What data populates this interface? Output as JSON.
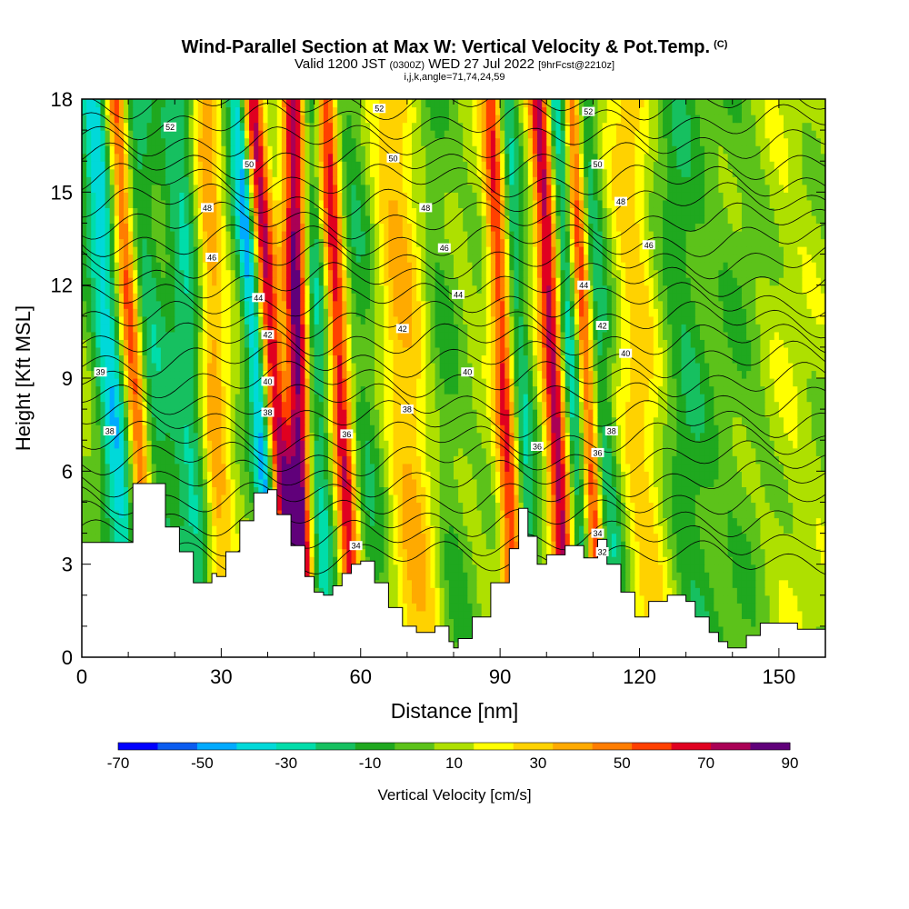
{
  "title": {
    "main": "Wind-Parallel Section at Max W: Vertical Velocity & Pot.Temp.",
    "copyright": "(C)",
    "valid_prefix": "Valid 1200 JST",
    "valid_utc": "(0300Z)",
    "valid_date": "WED 27 Jul 2022",
    "forecast_info": "[9hrFcst@2210z]",
    "indices": "i,j,k,angle=71,74,24,59"
  },
  "chart_data": {
    "type": "heatmap",
    "xlabel": "Distance [nm]",
    "ylabel": "Height [Kft MSL]",
    "xlim": [
      0,
      160
    ],
    "ylim": [
      0,
      18
    ],
    "x_ticks": [
      "0",
      "30",
      "60",
      "90",
      "120",
      "150"
    ],
    "y_ticks": [
      "0",
      "3",
      "6",
      "9",
      "12",
      "15",
      "18"
    ],
    "colorbar": {
      "label": "Vertical Velocity [cm/s]",
      "tick_labels": [
        "-70",
        "-50",
        "-30",
        "-10",
        "10",
        "30",
        "50",
        "70",
        "90"
      ],
      "min": -70,
      "max": 90,
      "colors": [
        "#0000ff",
        "#0a5cf0",
        "#00aaff",
        "#00d9d9",
        "#00ddaa",
        "#16c060",
        "#1fa81f",
        "#5cc21a",
        "#aee000",
        "#ffff00",
        "#ffd200",
        "#ffaa00",
        "#ff7d00",
        "#ff4000",
        "#e00020",
        "#aa0055",
        "#60007a"
      ]
    },
    "terrain_kft": [
      [
        0,
        3.7
      ],
      [
        10,
        3.7
      ],
      [
        11,
        5.6
      ],
      [
        15,
        5.6
      ],
      [
        18,
        4.2
      ],
      [
        21,
        3.4
      ],
      [
        24,
        2.4
      ],
      [
        26,
        2.4
      ],
      [
        28,
        2.7
      ],
      [
        29,
        2.6
      ],
      [
        31,
        3.4
      ],
      [
        34,
        4.4
      ],
      [
        37,
        5.3
      ],
      [
        40,
        5.4
      ],
      [
        42,
        4.6
      ],
      [
        45,
        3.6
      ],
      [
        48,
        2.6
      ],
      [
        50,
        2.1
      ],
      [
        52,
        2.0
      ],
      [
        54,
        2.3
      ],
      [
        56,
        2.7
      ],
      [
        58,
        3.0
      ],
      [
        60,
        3.1
      ],
      [
        63,
        2.4
      ],
      [
        66,
        1.6
      ],
      [
        69,
        1.0
      ],
      [
        72,
        0.8
      ],
      [
        76,
        1.0
      ],
      [
        79,
        0.5
      ],
      [
        80,
        0.3
      ],
      [
        81,
        0.6
      ],
      [
        84,
        1.3
      ],
      [
        88,
        2.4
      ],
      [
        92,
        3.5
      ],
      [
        94,
        4.8
      ],
      [
        96,
        3.9
      ],
      [
        98,
        3.0
      ],
      [
        100,
        3.3
      ],
      [
        104,
        3.6
      ],
      [
        108,
        3.2
      ],
      [
        111,
        3.8
      ],
      [
        113,
        3.0
      ],
      [
        116,
        2.1
      ],
      [
        119,
        1.3
      ],
      [
        122,
        1.8
      ],
      [
        126,
        2.0
      ],
      [
        130,
        1.8
      ],
      [
        132,
        1.3
      ],
      [
        135,
        0.8
      ],
      [
        137,
        0.5
      ],
      [
        139,
        0.3
      ],
      [
        141,
        0.3
      ],
      [
        143,
        0.7
      ],
      [
        146,
        1.1
      ],
      [
        150,
        1.1
      ],
      [
        154,
        0.9
      ],
      [
        157,
        0.9
      ],
      [
        160,
        1.0
      ]
    ],
    "theta_contour_labels": [
      {
        "text": "52",
        "x": 19,
        "y": 17.1
      },
      {
        "text": "50",
        "x": 36,
        "y": 15.9
      },
      {
        "text": "48",
        "x": 27,
        "y": 14.5
      },
      {
        "text": "46",
        "x": 28,
        "y": 12.9
      },
      {
        "text": "44",
        "x": 38,
        "y": 11.6
      },
      {
        "text": "42",
        "x": 40,
        "y": 10.4
      },
      {
        "text": "40",
        "x": 40,
        "y": 8.9
      },
      {
        "text": "38",
        "x": 40,
        "y": 7.9
      },
      {
        "text": "39",
        "x": 4,
        "y": 9.2
      },
      {
        "text": "38",
        "x": 6,
        "y": 7.3
      },
      {
        "text": "52",
        "x": 64,
        "y": 17.7
      },
      {
        "text": "50",
        "x": 67,
        "y": 16.1
      },
      {
        "text": "48",
        "x": 74,
        "y": 14.5
      },
      {
        "text": "46",
        "x": 78,
        "y": 13.2
      },
      {
        "text": "44",
        "x": 81,
        "y": 11.7
      },
      {
        "text": "42",
        "x": 69,
        "y": 10.6
      },
      {
        "text": "40",
        "x": 83,
        "y": 9.2
      },
      {
        "text": "38",
        "x": 70,
        "y": 8.0
      },
      {
        "text": "36",
        "x": 57,
        "y": 7.2
      },
      {
        "text": "34",
        "x": 59,
        "y": 3.6
      },
      {
        "text": "52",
        "x": 109,
        "y": 17.6
      },
      {
        "text": "50",
        "x": 111,
        "y": 15.9
      },
      {
        "text": "48",
        "x": 116,
        "y": 14.7
      },
      {
        "text": "46",
        "x": 122,
        "y": 13.3
      },
      {
        "text": "44",
        "x": 108,
        "y": 12.0
      },
      {
        "text": "42",
        "x": 112,
        "y": 10.7
      },
      {
        "text": "40",
        "x": 117,
        "y": 9.8
      },
      {
        "text": "38",
        "x": 114,
        "y": 7.3
      },
      {
        "text": "36",
        "x": 98,
        "y": 6.8
      },
      {
        "text": "36",
        "x": 111,
        "y": 6.6
      },
      {
        "text": "34",
        "x": 111,
        "y": 4.0
      },
      {
        "text": "32",
        "x": 112,
        "y": 3.4
      }
    ]
  }
}
